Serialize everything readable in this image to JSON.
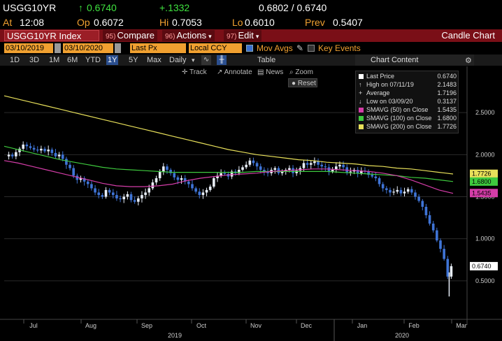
{
  "quote": {
    "symbol": "USGG10YR",
    "last_arrow": "↑",
    "last": "0.6740",
    "change": "+.1332",
    "bid_ask": "0.6802 / 0.6740",
    "at_label": "At",
    "time": "12:08",
    "open_label": "Op",
    "open": "0.6072",
    "high_label": "Hi",
    "high": "0.7053",
    "low_label": "Lo",
    "low": "0.6010",
    "prev_label": "Prev",
    "prev": "0.5407"
  },
  "titlebar": {
    "index": "USGG10YR Index",
    "compare_num": "95)",
    "compare": "Compare",
    "actions_num": "96)",
    "actions": "Actions",
    "edit_num": "97)",
    "edit": "Edit",
    "chart_title": "Candle Chart"
  },
  "inputs": {
    "start_date": "03/10/2019",
    "end_date": "03/10/2020",
    "price_field": "Last Px",
    "currency": "Local CCY",
    "mov_avgs": "Mov Avgs",
    "key_events": "Key Events"
  },
  "periods": {
    "items": [
      "1D",
      "3D",
      "1M",
      "6M",
      "YTD",
      "1Y",
      "5Y",
      "Max"
    ],
    "active": "1Y",
    "frequency": "Daily",
    "table": "Table",
    "chart_content": "Chart Content"
  },
  "chart_tools": {
    "track": "Track",
    "annotate": "Annotate",
    "news": "News",
    "zoom": "Zoom",
    "reset": "Reset"
  },
  "legend": {
    "rows": [
      {
        "label": "Last Price",
        "value": "0.6740",
        "color": "#ffffff"
      },
      {
        "label": "High on 07/11/19",
        "value": "2.1483",
        "color": ""
      },
      {
        "label": "Average",
        "value": "1.7196",
        "color": ""
      },
      {
        "label": "Low on 03/09/20",
        "value": "0.3137",
        "color": ""
      },
      {
        "label": "SMAVG (50)  on Close",
        "value": "1.5435",
        "color": "#d43da8"
      },
      {
        "label": "SMAVG (100)  on Close",
        "value": "1.6800",
        "color": "#3ec93e"
      },
      {
        "label": "SMAVG (200)  on Close",
        "value": "1.7726",
        "color": "#e8e05a"
      }
    ]
  },
  "chart_data": {
    "type": "candlestick",
    "y_ticks": [
      "2.5000",
      "2.0000",
      "1.5000",
      "1.0000",
      "0.5000"
    ],
    "y_tick_values": [
      2.5,
      2.0,
      1.5,
      1.0,
      0.5
    ],
    "ylim": [
      0.1,
      2.95
    ],
    "x_month_labels": [
      "Jul",
      "Aug",
      "Sep",
      "Oct",
      "Nov",
      "Dec",
      "Jan",
      "Feb",
      "Mar"
    ],
    "x_year_labels": [
      "2019",
      "2020"
    ],
    "price_tags": [
      {
        "value": 1.7726,
        "label": "1.7726",
        "color": "#e8e05a"
      },
      {
        "value": 1.68,
        "label": "1.6800",
        "color": "#3ec93e"
      },
      {
        "value": 1.5435,
        "label": "1.5435",
        "color": "#d43da8"
      },
      {
        "value": 0.674,
        "label": "0.6740",
        "color": "#ffffff"
      }
    ],
    "closes": [
      2.0,
      1.98,
      2.03,
      2.07,
      2.12,
      2.1,
      2.08,
      2.06,
      2.05,
      2.07,
      2.04,
      2.06,
      2.02,
      1.98,
      2.0,
      1.95,
      1.88,
      1.84,
      1.75,
      1.7,
      1.72,
      1.68,
      1.65,
      1.6,
      1.55,
      1.52,
      1.5,
      1.58,
      1.55,
      1.52,
      1.48,
      1.47,
      1.5,
      1.53,
      1.46,
      1.44,
      1.48,
      1.52,
      1.55,
      1.6,
      1.67,
      1.72,
      1.8,
      1.86,
      1.82,
      1.78,
      1.73,
      1.7,
      1.72,
      1.68,
      1.65,
      1.6,
      1.56,
      1.52,
      1.55,
      1.58,
      1.62,
      1.72,
      1.75,
      1.78,
      1.77,
      1.74,
      1.8,
      1.78,
      1.82,
      1.85,
      1.88,
      1.93,
      1.9,
      1.86,
      1.82,
      1.8,
      1.78,
      1.82,
      1.84,
      1.78,
      1.8,
      1.82,
      1.84,
      1.78,
      1.81,
      1.84,
      1.9,
      1.88,
      1.9,
      1.92,
      1.88,
      1.86,
      1.85,
      1.8,
      1.82,
      1.86,
      1.88,
      1.85,
      1.79,
      1.8,
      1.82,
      1.78,
      1.81,
      1.8,
      1.76,
      1.74,
      1.72,
      1.65,
      1.6,
      1.58,
      1.55,
      1.56,
      1.58,
      1.54,
      1.56,
      1.59,
      1.55,
      1.5,
      1.45,
      1.38,
      1.28,
      1.18,
      1.1,
      0.98,
      0.88,
      0.76,
      0.55,
      0.674
    ],
    "sma50": [
      1.93,
      1.9,
      1.86,
      1.82,
      1.78,
      1.74,
      1.7,
      1.66,
      1.63,
      1.62,
      1.62,
      1.63,
      1.65,
      1.69,
      1.72,
      1.74,
      1.76,
      1.77,
      1.78,
      1.8,
      1.81,
      1.82,
      1.83,
      1.83,
      1.82,
      1.81,
      1.8,
      1.78,
      1.75,
      1.7,
      1.64,
      1.58,
      1.54
    ],
    "sma100": [
      2.1,
      2.06,
      2.02,
      1.98,
      1.94,
      1.91,
      1.88,
      1.85,
      1.83,
      1.82,
      1.81,
      1.8,
      1.79,
      1.79,
      1.79,
      1.79,
      1.79,
      1.79,
      1.8,
      1.8,
      1.8,
      1.8,
      1.8,
      1.8,
      1.79,
      1.78,
      1.77,
      1.76,
      1.75,
      1.73,
      1.72,
      1.7,
      1.68
    ],
    "sma200": [
      2.7,
      2.66,
      2.62,
      2.58,
      2.54,
      2.5,
      2.46,
      2.42,
      2.38,
      2.34,
      2.3,
      2.26,
      2.22,
      2.18,
      2.14,
      2.1,
      2.06,
      2.03,
      2.0,
      1.98,
      1.96,
      1.94,
      1.93,
      1.91,
      1.9,
      1.89,
      1.87,
      1.86,
      1.84,
      1.83,
      1.81,
      1.79,
      1.77
    ]
  }
}
